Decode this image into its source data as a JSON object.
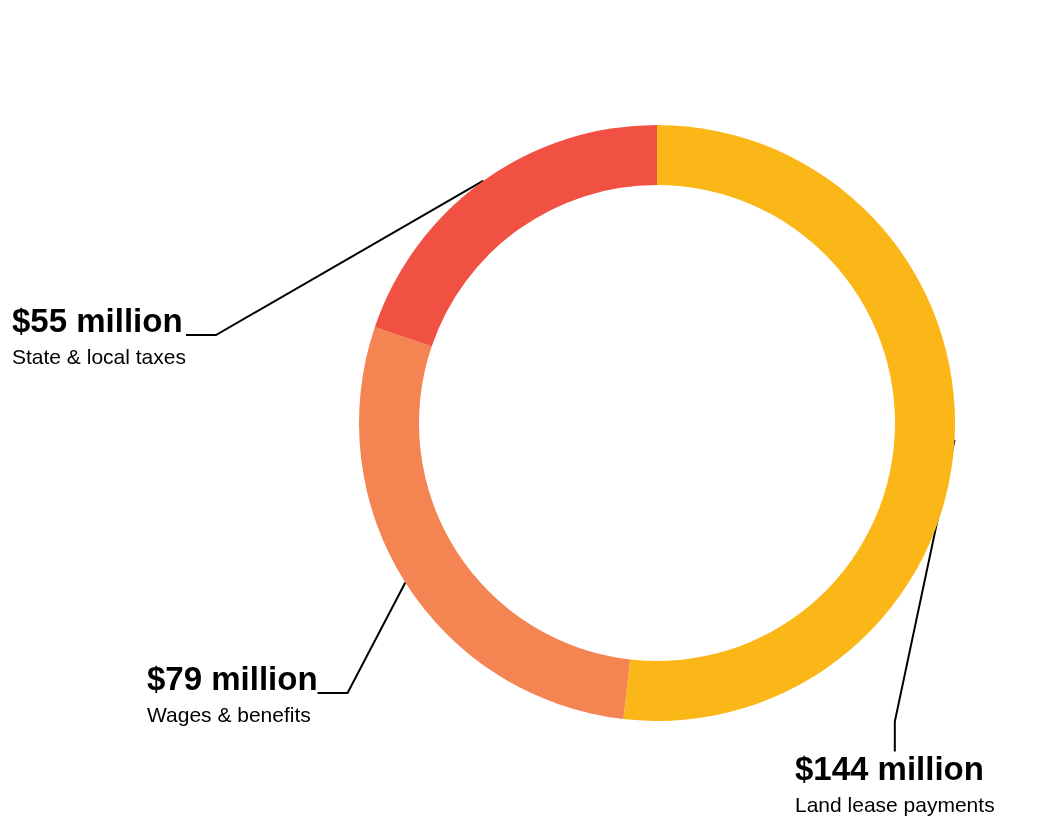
{
  "chart_data": {
    "type": "donut",
    "categories": [
      "Land lease payments",
      "Wages & benefits",
      "State & local taxes"
    ],
    "values": [
      144,
      79,
      55
    ],
    "value_labels": [
      "$144 million",
      "$79 million",
      "$55 million"
    ],
    "colors": [
      "#fbb718",
      "#f58453",
      "#f05142"
    ],
    "legend": false
  }
}
